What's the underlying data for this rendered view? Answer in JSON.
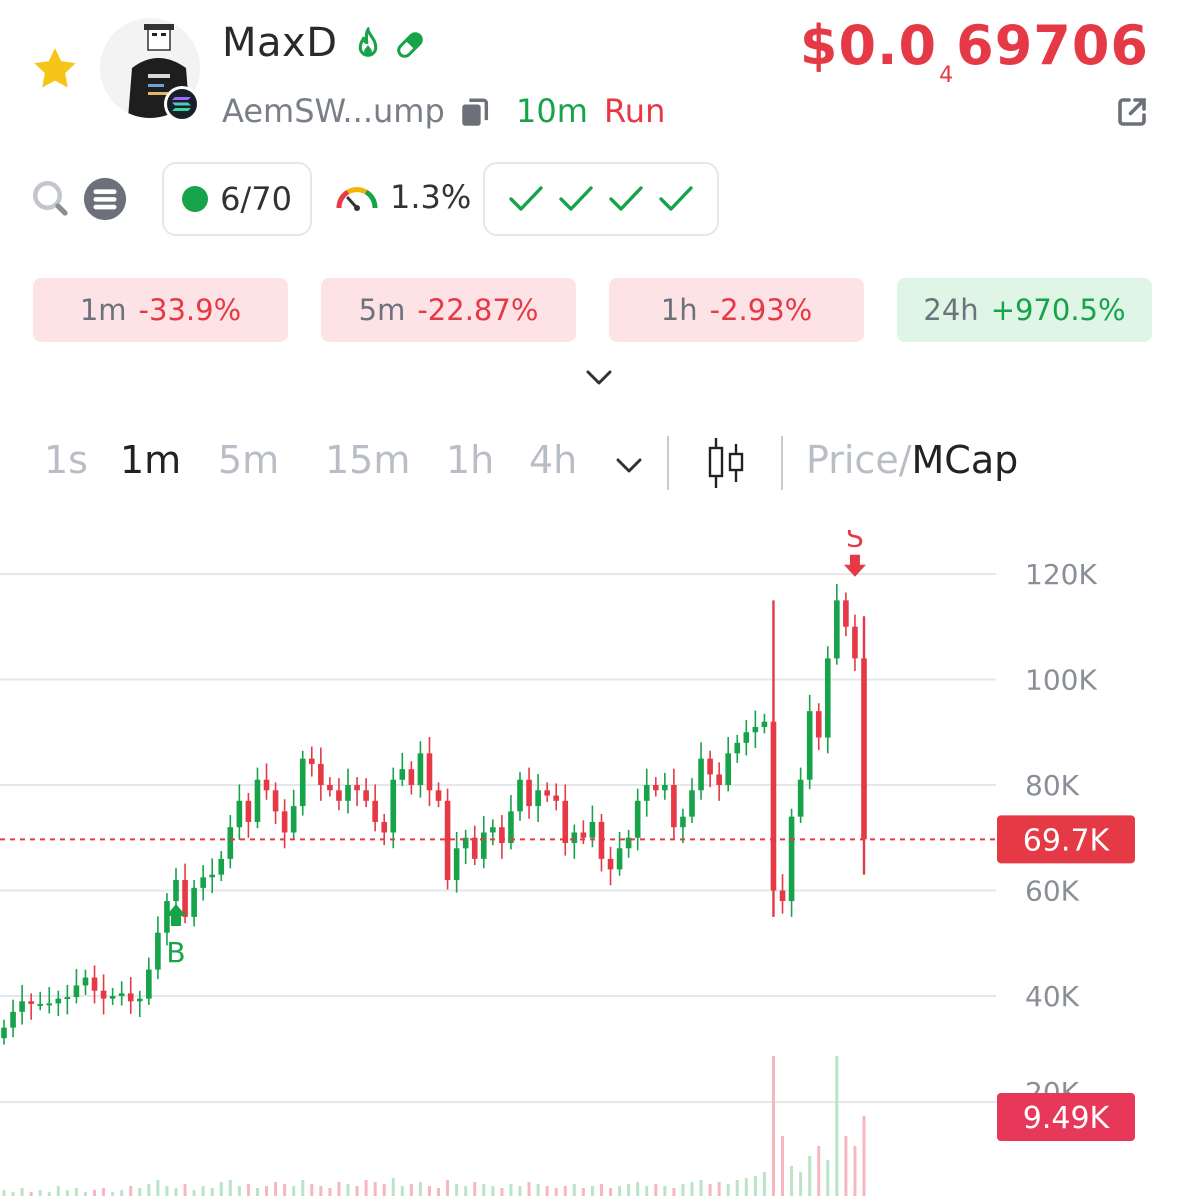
{
  "token": {
    "name": "MaxD",
    "address": "AemSW...ump",
    "age": "10m",
    "status": "Run",
    "price_prefix": "$0.0",
    "price_zeros": "4",
    "price_digits": "69706"
  },
  "stats": {
    "holders": "6/70",
    "top_pct": "1.3%"
  },
  "changes": [
    {
      "label": "1m",
      "value": "-33.9%",
      "dir": "neg"
    },
    {
      "label": "5m",
      "value": "-22.87%",
      "dir": "neg"
    },
    {
      "label": "1h",
      "value": "-2.93%",
      "dir": "neg"
    },
    {
      "label": "24h",
      "value": "+970.5%",
      "dir": "pos"
    }
  ],
  "timeframes": [
    "1s",
    "1m",
    "5m",
    "15m",
    "1h",
    "4h"
  ],
  "active_timeframe": "1m",
  "toggle": {
    "price": "Price",
    "slash": "/",
    "mcap": "MCap"
  },
  "colors": {
    "up": "#16a34a",
    "down": "#e53945",
    "accent_star": "#f5c518"
  },
  "chart_data": {
    "type": "candlestick",
    "y_ticks": [
      "120K",
      "100K",
      "80K",
      "60K",
      "40K"
    ],
    "y_tick_values": [
      120000,
      100000,
      80000,
      60000,
      40000
    ],
    "ylim": [
      28000,
      124000
    ],
    "current_label": "69.7K",
    "current_value": 69700,
    "volume_label": "9.49K",
    "volume_axis_partial": "20K",
    "buy_marker": "B",
    "sell_marker": "S",
    "closes": [
      34000,
      37000,
      39000,
      38500,
      38500,
      38600,
      39500,
      39800,
      42000,
      43500,
      41000,
      39500,
      40000,
      40500,
      39000,
      39500,
      45000,
      52000,
      58000,
      62000,
      55000,
      60500,
      62500,
      63000,
      66000,
      72000,
      77000,
      73000,
      81000,
      79000,
      75000,
      71000,
      76000,
      85000,
      84000,
      80000,
      79000,
      77000,
      80000,
      79000,
      77000,
      73000,
      71000,
      81000,
      83000,
      80000,
      86000,
      79000,
      77000,
      62000,
      68000,
      70000,
      66000,
      71000,
      72000,
      69000,
      75000,
      81000,
      76000,
      79000,
      78000,
      77000,
      69000,
      71000,
      70000,
      73000,
      66000,
      64000,
      68000,
      70000,
      77000,
      80000,
      79000,
      80000,
      72000,
      74000,
      79000,
      85000,
      82000,
      80000,
      86000,
      88000,
      90000,
      91000,
      92000,
      60000,
      58000,
      74000,
      81000,
      94000,
      89000,
      104000,
      115000,
      110000,
      104000,
      69700
    ],
    "buy_index": 19,
    "sell_index": 94,
    "spikes": [
      {
        "index": 85,
        "high": 115000,
        "low": 55000
      },
      {
        "index": 95,
        "high": 112000,
        "low": 63000
      }
    ],
    "volumes": [
      3,
      2,
      4,
      2,
      3,
      2,
      5,
      3,
      4,
      2,
      3,
      4,
      2,
      3,
      5,
      4,
      6,
      8,
      5,
      4,
      6,
      3,
      5,
      4,
      7,
      8,
      5,
      6,
      4,
      5,
      7,
      6,
      5,
      8,
      6,
      5,
      4,
      7,
      6,
      5,
      8,
      7,
      6,
      9,
      5,
      6,
      7,
      5,
      4,
      8,
      6,
      5,
      7,
      6,
      5,
      4,
      6,
      5,
      7,
      6,
      5,
      4,
      5,
      6,
      4,
      5,
      6,
      4,
      5,
      6,
      7,
      5,
      6,
      5,
      4,
      6,
      7,
      8,
      6,
      7,
      6,
      8,
      9,
      10,
      12,
      70,
      30,
      15,
      12,
      20,
      25,
      18,
      70,
      30,
      25,
      40
    ]
  }
}
